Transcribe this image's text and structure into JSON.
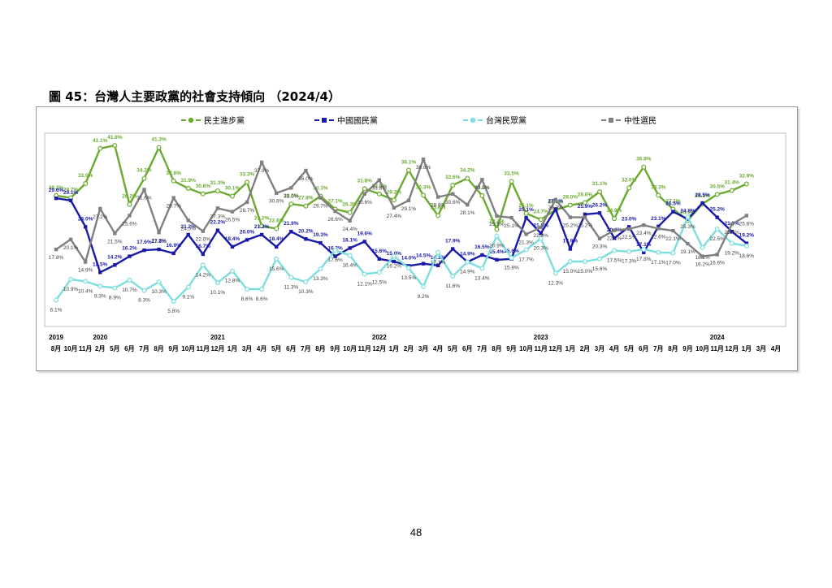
{
  "figure": {
    "title": "圖 45：台灣人主要政黨的社會支持傾向 （2024/4）"
  },
  "page_number": "48",
  "chart_data": {
    "type": "line",
    "categories": [
      "8月",
      "10月",
      "11月",
      "2月",
      "5月",
      "6月",
      "7月",
      "8月",
      "9月",
      "10月",
      "11月",
      "12月",
      "1月",
      "3月",
      "4月",
      "5月",
      "6月",
      "7月",
      "8月",
      "9月",
      "10月",
      "11月",
      "12月",
      "1月",
      "2月",
      "3月",
      "4月",
      "5月",
      "6月",
      "7月",
      "8月",
      "9月",
      "10月",
      "11月",
      "12月",
      "1月",
      "2月",
      "3月",
      "4月",
      "5月",
      "6月",
      "7月",
      "8月",
      "9月",
      "10月",
      "11月",
      "12月",
      "1月",
      "3月",
      "4月"
    ],
    "year_labels": [
      {
        "label": "2019",
        "index": 0
      },
      {
        "label": "2020",
        "index": 3
      },
      {
        "label": "2021",
        "index": 11
      },
      {
        "label": "2022",
        "index": 22
      },
      {
        "label": "2023",
        "index": 33
      },
      {
        "label": "2024",
        "index": 45
      }
    ],
    "ylim": [
      0,
      45
    ],
    "grid": false,
    "legend_position": "top",
    "series": [
      {
        "name": "民主進步黨",
        "color": "#6aaa2f",
        "dash": "6,3",
        "marker": "circle",
        "values": [
          30.2,
          29.7,
          33.0,
          41.1,
          41.8,
          28.2,
          34.2,
          41.3,
          33.6,
          31.9,
          30.6,
          31.3,
          30.1,
          33.3,
          23.2,
          22.6,
          28.3,
          27.8,
          30.1,
          27.1,
          26.3,
          31.8,
          30.6,
          29.2,
          36.1,
          30.3,
          25.6,
          32.6,
          34.2,
          30.2,
          22.4,
          33.5,
          26.1,
          24.7,
          26.9,
          28.0,
          28.6,
          31.1,
          24.9,
          32.0,
          36.8,
          30.3,
          27.1,
          24.5,
          28.3,
          30.5,
          31.4,
          32.9,
          null,
          null
        ]
      },
      {
        "name": "中國國民黨",
        "color": "#1a1aa8",
        "dash": "6,3",
        "marker": "square",
        "values": [
          29.6,
          29.1,
          23.0,
          12.5,
          14.2,
          16.2,
          17.6,
          17.8,
          16.9,
          21.2,
          16.7,
          22.2,
          18.4,
          20.0,
          21.2,
          18.4,
          21.9,
          20.2,
          19.3,
          16.2,
          18.1,
          19.6,
          15.6,
          15.0,
          14.0,
          14.5,
          14.1,
          17.9,
          14.9,
          16.5,
          15.4,
          15.6,
          25.1,
          21.5,
          27.1,
          17.9,
          25.9,
          26.2,
          20.4,
          23.0,
          17.1,
          23.1,
          26.5,
          24.8,
          28.5,
          25.2,
          21.9,
          19.2,
          null,
          null
        ]
      },
      {
        "name": "台灣民眾黨",
        "color": "#7ddede",
        "dash": "6,3",
        "marker": "circle",
        "values": [
          6.1,
          10.9,
          10.4,
          9.3,
          8.9,
          10.7,
          8.3,
          10.3,
          5.8,
          9.1,
          14.2,
          10.1,
          12.8,
          8.6,
          8.6,
          15.6,
          11.3,
          10.3,
          13.3,
          17.6,
          16.4,
          12.1,
          12.5,
          16.2,
          13.5,
          9.2,
          17.1,
          11.6,
          14.9,
          13.4,
          20.9,
          15.8,
          17.7,
          20.3,
          12.3,
          15.0,
          15.0,
          15.6,
          17.5,
          17.3,
          17.8,
          17.1,
          17.0,
          25.3,
          18.2,
          22.5,
          19.2,
          18.6,
          null,
          null
        ]
      },
      {
        "name": "中性選民",
        "color": "#808080",
        "dash": "6,3",
        "marker": "square",
        "values": [
          17.8,
          20.1,
          14.9,
          27.2,
          21.5,
          25.6,
          31.6,
          21.7,
          29.7,
          24.5,
          22.0,
          27.3,
          26.5,
          28.7,
          37.9,
          30.8,
          32.0,
          36.0,
          29.7,
          26.6,
          24.4,
          30.6,
          33.8,
          27.4,
          29.1,
          38.6,
          29.9,
          30.6,
          28.1,
          33.9,
          25.5,
          25.1,
          21.3,
          22.9,
          29.3,
          25.2,
          25.2,
          20.3,
          22.2,
          22.5,
          23.4,
          22.6,
          22.1,
          19.1,
          16.2,
          16.6,
          23.6,
          25.6,
          null,
          null
        ]
      }
    ]
  }
}
